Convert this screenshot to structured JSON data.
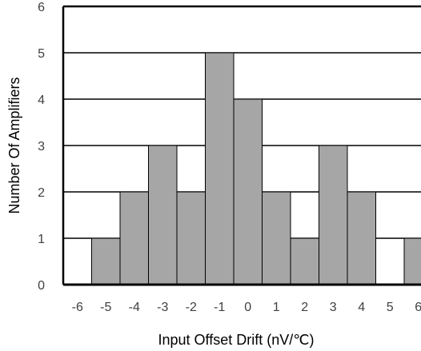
{
  "chart_data": {
    "type": "bar",
    "title": "",
    "xlabel": "Input Offset Drift (nV/℃)",
    "ylabel": "Number Of Amplifiers",
    "categories": [
      "-6",
      "-5",
      "-4",
      "-3",
      "-2",
      "-1",
      "0",
      "1",
      "2",
      "3",
      "4",
      "5",
      "6"
    ],
    "values": [
      0,
      1,
      2,
      3,
      2,
      5,
      4,
      2,
      1,
      3,
      2,
      0,
      1
    ],
    "ylim": [
      0,
      6
    ],
    "yticks": [
      "0",
      "1",
      "2",
      "3",
      "4",
      "5",
      "6"
    ],
    "grid": true,
    "colors": {
      "bar": "#a6a6a6",
      "bar_edge": "#000000",
      "axis": "#000000",
      "grid": "#000000"
    }
  }
}
